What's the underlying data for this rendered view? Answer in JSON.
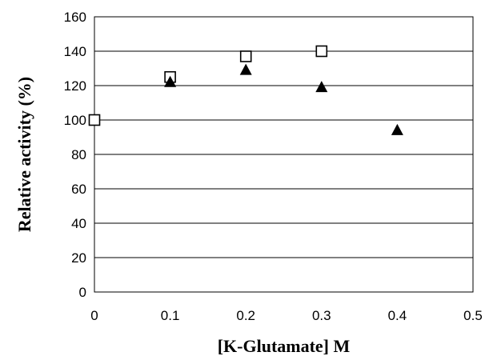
{
  "chart_data": {
    "type": "scatter",
    "title": "",
    "xlabel": "[K-Glutamate] M",
    "ylabel": "Relative activity (%)",
    "xlim": [
      0,
      0.5
    ],
    "ylim": [
      0,
      160
    ],
    "xticks": [
      "0",
      "0.1",
      "0.2",
      "0.3",
      "0.4",
      "0.5"
    ],
    "yticks": [
      "0",
      "20",
      "40",
      "60",
      "80",
      "100",
      "120",
      "140",
      "160"
    ],
    "grid": true,
    "legend": "none",
    "series": [
      {
        "marker": "open-square",
        "color": "#000000",
        "x": [
          0,
          0.1,
          0.2,
          0.3
        ],
        "y": [
          100,
          125,
          137,
          140
        ]
      },
      {
        "marker": "filled-triangle",
        "color": "#000000",
        "x": [
          0.1,
          0.2,
          0.3,
          0.4
        ],
        "y": [
          122,
          129,
          119,
          94
        ]
      }
    ]
  }
}
